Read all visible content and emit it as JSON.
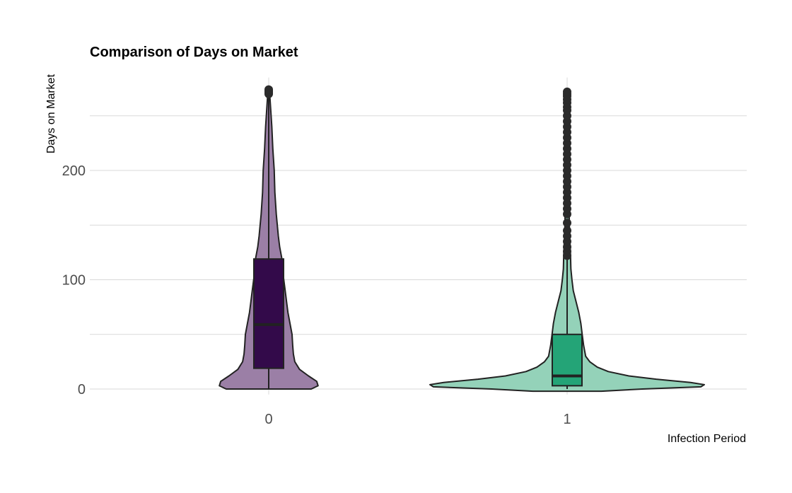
{
  "chart_data": {
    "type": "violin",
    "title": "Comparison of Days on Market",
    "xlabel": "Infection Period",
    "ylabel": "Days on Market",
    "ylim": [
      -5,
      285
    ],
    "yticks": [
      0,
      100,
      200
    ],
    "ytick_labels": [
      "0",
      "100",
      "200"
    ],
    "grid": true,
    "legend": "none",
    "categories": [
      "0",
      "1"
    ],
    "groups": [
      {
        "category": "0",
        "violin_color": "#9b7fa6",
        "box_color": "#330a4a",
        "box": {
          "q1": 19,
          "median": 59,
          "q3": 119,
          "whisker_low": 0,
          "whisker_high": 272
        },
        "density": [
          [
            0,
            0.62
          ],
          [
            3,
            0.72
          ],
          [
            7,
            0.7
          ],
          [
            12,
            0.58
          ],
          [
            18,
            0.45
          ],
          [
            25,
            0.38
          ],
          [
            32,
            0.36
          ],
          [
            40,
            0.35
          ],
          [
            50,
            0.34
          ],
          [
            60,
            0.31
          ],
          [
            70,
            0.28
          ],
          [
            80,
            0.26
          ],
          [
            90,
            0.24
          ],
          [
            100,
            0.22
          ],
          [
            110,
            0.2
          ],
          [
            120,
            0.19
          ],
          [
            130,
            0.16
          ],
          [
            140,
            0.14
          ],
          [
            160,
            0.11
          ],
          [
            180,
            0.09
          ],
          [
            200,
            0.08
          ],
          [
            220,
            0.06
          ],
          [
            240,
            0.045
          ],
          [
            255,
            0.03
          ],
          [
            265,
            0.02
          ],
          [
            272,
            0.01
          ]
        ],
        "outliers": [
          270,
          271,
          272,
          273,
          274
        ]
      },
      {
        "category": "1",
        "violin_color": "#94d2b9",
        "box_color": "#24a477",
        "box": {
          "q1": 3,
          "median": 12,
          "q3": 50,
          "whisker_low": 0,
          "whisker_high": 120
        },
        "density": [
          [
            -2,
            0.5
          ],
          [
            0,
            1.1
          ],
          [
            2,
            1.95
          ],
          [
            4,
            2.0
          ],
          [
            6,
            1.8
          ],
          [
            9,
            1.3
          ],
          [
            12,
            0.9
          ],
          [
            16,
            0.6
          ],
          [
            20,
            0.44
          ],
          [
            25,
            0.33
          ],
          [
            30,
            0.27
          ],
          [
            40,
            0.24
          ],
          [
            50,
            0.22
          ],
          [
            60,
            0.2
          ],
          [
            70,
            0.17
          ],
          [
            80,
            0.13
          ],
          [
            90,
            0.09
          ],
          [
            100,
            0.07
          ],
          [
            110,
            0.055
          ],
          [
            120,
            0.05
          ],
          [
            130,
            0.045
          ],
          [
            140,
            0.035
          ],
          [
            160,
            0.03
          ],
          [
            180,
            0.025
          ],
          [
            200,
            0.022
          ],
          [
            220,
            0.02
          ],
          [
            240,
            0.018
          ],
          [
            255,
            0.015
          ],
          [
            265,
            0.012
          ],
          [
            272,
            0.008
          ]
        ],
        "outliers": [
          122,
          126,
          130,
          135,
          140,
          145,
          152,
          160,
          165,
          170,
          175,
          180,
          185,
          190,
          195,
          200,
          205,
          210,
          215,
          220,
          225,
          230,
          235,
          240,
          245,
          250,
          255,
          258,
          262,
          265,
          268,
          270,
          272
        ]
      }
    ]
  }
}
